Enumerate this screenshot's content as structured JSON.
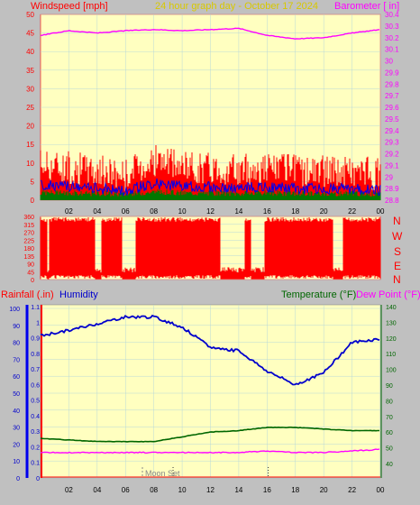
{
  "colors": {
    "background": "#c0c0c0",
    "plot_bg": "#ffffc0",
    "grid": "#b8d8d8",
    "red": "#ff0000",
    "blue": "#0000ee",
    "green": "#007700",
    "magenta": "#ff00ff",
    "title": "#d8c800",
    "humidity_blue": "#0000cc",
    "temp_green": "#006600",
    "tick_label": "#000000"
  },
  "header": {
    "windspeed_label": "Windspeed [mph]",
    "title": "24 hour graph day - October 17 2024",
    "barometer_label": "Barometer [ in]"
  },
  "panel1": {
    "left_ticks": [
      "50",
      "45",
      "40",
      "35",
      "30",
      "25",
      "20",
      "15",
      "10",
      "5",
      "0"
    ],
    "right_ticks": [
      "30.4",
      "30.3",
      "30.2",
      "30.1",
      "30",
      "29.9",
      "29.8",
      "29.7",
      "29.6",
      "29.5",
      "29.4",
      "29.3",
      "29.2",
      "29.1",
      "29",
      "28.9",
      "28.8"
    ],
    "x_ticks": [
      "02",
      "04",
      "06",
      "08",
      "10",
      "12",
      "14",
      "16",
      "18",
      "20",
      "22",
      "00"
    ]
  },
  "panel2": {
    "left_ticks": [
      "360",
      "315",
      "270",
      "225",
      "180",
      "135",
      "90",
      "45",
      "0"
    ],
    "compass": [
      "N",
      "W",
      "S",
      "E",
      "N"
    ]
  },
  "panel3_header": {
    "rainfall_label": "Rainfall (.in)",
    "humidity_label": "Humidity",
    "temperature_label": "Temperature (°F)",
    "dewpoint_label": "Dew Point (°F)"
  },
  "panel3": {
    "humidity_ticks": [
      "100",
      "90",
      "80",
      "70",
      "60",
      "50",
      "40",
      "30",
      "20",
      "10",
      "0"
    ],
    "rain_ticks": [
      "1.1",
      "1",
      "0.9",
      "0.8",
      "0.7",
      "0.6",
      "0.5",
      "0.4",
      "0.3",
      "0.2",
      "0.1",
      "0"
    ],
    "temp_ticks": [
      "140",
      "130",
      "120",
      "110",
      "100",
      "90",
      "80",
      "70",
      "60",
      "50",
      "40"
    ],
    "x_ticks": [
      "02",
      "04",
      "06",
      "08",
      "10",
      "12",
      "14",
      "16",
      "18",
      "20",
      "22",
      "00"
    ],
    "moon_label": "Moon Set"
  },
  "chart_data": [
    {
      "type": "line",
      "title": "24 hour graph day - October 17 2024",
      "ylabel": "Windspeed [mph]",
      "y2label": "Barometer [ in]",
      "ylim": [
        0,
        50
      ],
      "y2lim": [
        28.8,
        30.4
      ],
      "x": [
        0,
        2,
        4,
        6,
        8,
        10,
        12,
        14,
        16,
        18,
        20,
        22,
        24
      ],
      "xticks": [
        "02",
        "04",
        "06",
        "08",
        "10",
        "12",
        "14",
        "16",
        "18",
        "20",
        "22",
        "00"
      ],
      "series": [
        {
          "name": "Windspeed [mph]",
          "axis": "left",
          "values": [
            9,
            8,
            7,
            6,
            10,
            8,
            8,
            7,
            8,
            7,
            7,
            7,
            6
          ]
        },
        {
          "name": "Barometer [ in]",
          "axis": "right",
          "values": [
            30.22,
            30.26,
            30.24,
            30.26,
            30.27,
            30.26,
            30.27,
            30.28,
            30.22,
            30.19,
            30.2,
            30.24,
            30.27
          ]
        }
      ]
    },
    {
      "type": "bar",
      "ylim": [
        0,
        360
      ],
      "yticks": [
        "360",
        "315",
        "270",
        "225",
        "180",
        "135",
        "90",
        "45",
        "0"
      ],
      "compass": [
        "N",
        "W",
        "S",
        "E",
        "N"
      ],
      "x": [
        0,
        2,
        4,
        6,
        8,
        10,
        12,
        14,
        16,
        18,
        20,
        22,
        24
      ],
      "series": [
        {
          "values": [
            345,
            20,
            340,
            300,
            10,
            330,
            350,
            20,
            340,
            350,
            330,
            15,
            340
          ]
        }
      ]
    },
    {
      "type": "line",
      "x": [
        0,
        2,
        4,
        6,
        8,
        10,
        12,
        14,
        16,
        18,
        20,
        22,
        24
      ],
      "xticks": [
        "02",
        "04",
        "06",
        "08",
        "10",
        "12",
        "14",
        "16",
        "18",
        "20",
        "22",
        "00"
      ],
      "humidity_ylim": [
        0,
        100
      ],
      "rain_ylim": [
        0,
        1.1
      ],
      "temp_ylim": [
        40,
        140
      ],
      "series": [
        {
          "name": "Humidity",
          "axis": "humidity",
          "values": [
            84,
            87,
            91,
            95,
            95,
            89,
            77,
            75,
            63,
            55,
            62,
            80,
            82
          ]
        },
        {
          "name": "Temperature (°F)",
          "axis": "temp",
          "values": [
            56,
            55,
            54,
            54,
            54,
            57,
            60,
            61,
            63,
            63,
            62,
            61,
            61
          ]
        },
        {
          "name": "Dew Point (°F)",
          "axis": "temp",
          "values": [
            47,
            47,
            47,
            47,
            47,
            47,
            47,
            47,
            48,
            47,
            47,
            48,
            49
          ]
        },
        {
          "name": "Rainfall (.in)",
          "axis": "rain",
          "values": [
            0,
            0,
            0,
            0,
            0,
            0,
            0,
            0,
            0,
            0,
            0,
            0,
            0
          ]
        }
      ],
      "annotations": [
        {
          "text": "Moon Set",
          "x": 7
        }
      ]
    }
  ]
}
